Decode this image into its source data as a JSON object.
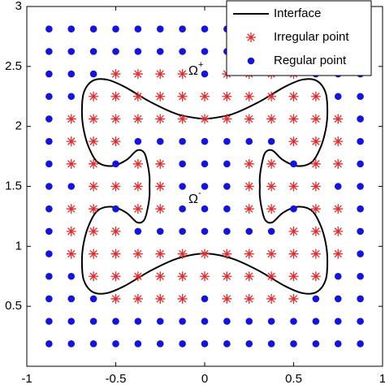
{
  "chart_data": {
    "type": "scatter",
    "xlim": [
      -1,
      1
    ],
    "ylim": [
      0,
      3
    ],
    "xticks": [
      -1,
      -0.5,
      0,
      0.5,
      1
    ],
    "yticks": [
      0.5,
      1,
      1.5,
      2,
      2.5,
      3
    ],
    "legend": "upper right",
    "annotations": [
      {
        "text": "Ω",
        "superscript": "+"
      },
      {
        "text": "Ω",
        "superscript": "-"
      }
    ],
    "series": [
      {
        "name": "Interface",
        "type": "line",
        "color": "#000000",
        "x": [
          0,
          -0.15,
          -0.3,
          -0.45,
          -0.55,
          -0.63,
          -0.68,
          -0.69,
          -0.68,
          -0.65,
          -0.6,
          -0.52,
          -0.44,
          -0.38,
          -0.34,
          -0.32,
          -0.31,
          -0.31,
          -0.31,
          -0.32,
          -0.34,
          -0.38,
          -0.44,
          -0.52,
          -0.6,
          -0.65,
          -0.68,
          -0.69,
          -0.68,
          -0.63,
          -0.55,
          -0.45,
          -0.3,
          -0.15,
          0,
          0.15,
          0.3,
          0.45,
          0.55,
          0.63,
          0.68,
          0.69,
          0.68,
          0.65,
          0.6,
          0.52,
          0.44,
          0.38,
          0.34,
          0.32,
          0.31,
          0.31,
          0.31,
          0.32,
          0.34,
          0.38,
          0.44,
          0.52,
          0.6,
          0.65,
          0.68,
          0.69,
          0.68,
          0.63,
          0.55,
          0.45,
          0.3,
          0.15,
          0
        ],
        "y": [
          2.06,
          2.1,
          2.2,
          2.33,
          2.39,
          2.38,
          2.28,
          2.12,
          1.97,
          1.82,
          1.7,
          1.67,
          1.72,
          1.8,
          1.78,
          1.68,
          1.58,
          1.5,
          1.42,
          1.32,
          1.22,
          1.2,
          1.28,
          1.33,
          1.3,
          1.18,
          1.03,
          0.88,
          0.72,
          0.62,
          0.61,
          0.67,
          0.8,
          0.9,
          0.94,
          0.9,
          0.8,
          0.67,
          0.61,
          0.62,
          0.72,
          0.88,
          1.03,
          1.18,
          1.3,
          1.33,
          1.28,
          1.2,
          1.22,
          1.32,
          1.42,
          1.5,
          1.58,
          1.68,
          1.78,
          1.8,
          1.72,
          1.67,
          1.7,
          1.82,
          1.97,
          2.12,
          2.28,
          2.38,
          2.39,
          2.33,
          2.2,
          2.1,
          2.06
        ]
      },
      {
        "name": "Irregular point",
        "type": "star",
        "color": "#e8292a",
        "x": [
          -0.5,
          -0.375,
          -0.25,
          -0.125,
          0.125,
          0.25,
          0.375,
          0.5,
          -0.625,
          -0.5,
          -0.375,
          -0.25,
          -0.125,
          0,
          0.125,
          0.25,
          0.375,
          0.5,
          0.625,
          -0.75,
          -0.625,
          -0.5,
          -0.375,
          -0.25,
          -0.125,
          0,
          0.125,
          0.25,
          0.375,
          0.5,
          0.625,
          0.75,
          -0.75,
          -0.625,
          -0.5,
          0.5,
          0.625,
          0.75,
          -0.75,
          -0.625,
          -0.375,
          -0.25,
          0.25,
          0.375,
          0.625,
          0.75,
          -0.625,
          -0.5,
          -0.375,
          -0.25,
          0.25,
          0.375,
          0.5,
          0.625,
          -0.75,
          -0.625,
          -0.375,
          -0.25,
          0.25,
          0.375,
          0.625,
          0.75,
          -0.75,
          -0.625,
          -0.5,
          0.5,
          0.625,
          0.75,
          -0.75,
          -0.625,
          -0.5,
          -0.375,
          -0.25,
          -0.125,
          0,
          0.125,
          0.25,
          0.375,
          0.5,
          0.625,
          0.75,
          -0.625,
          -0.5,
          -0.375,
          -0.25,
          -0.125,
          0,
          0.125,
          0.25,
          0.375,
          0.5,
          0.625,
          -0.5,
          -0.375,
          -0.25,
          -0.125,
          0.125,
          0.25,
          0.375,
          0.5
        ],
        "y": [
          0.5625,
          0.5625,
          0.5625,
          0.5625,
          0.5625,
          0.5625,
          0.5625,
          0.5625,
          0.75,
          0.75,
          0.75,
          0.75,
          0.75,
          0.75,
          0.75,
          0.75,
          0.75,
          0.75,
          0.75,
          0.9375,
          0.9375,
          0.9375,
          0.9375,
          0.9375,
          0.9375,
          0.9375,
          0.9375,
          0.9375,
          0.9375,
          0.9375,
          0.9375,
          0.9375,
          1.125,
          1.125,
          1.125,
          1.125,
          1.125,
          1.125,
          1.3125,
          1.3125,
          1.3125,
          1.3125,
          1.3125,
          1.3125,
          1.3125,
          1.3125,
          1.5,
          1.5,
          1.5,
          1.5,
          1.5,
          1.5,
          1.5,
          1.5,
          1.6875,
          1.6875,
          1.6875,
          1.6875,
          1.6875,
          1.6875,
          1.6875,
          1.6875,
          1.875,
          1.875,
          1.875,
          1.875,
          1.875,
          1.875,
          2.0625,
          2.0625,
          2.0625,
          2.0625,
          2.0625,
          2.0625,
          2.0625,
          2.0625,
          2.0625,
          2.0625,
          2.0625,
          2.0625,
          2.0625,
          2.25,
          2.25,
          2.25,
          2.25,
          2.25,
          2.25,
          2.25,
          2.25,
          2.25,
          2.25,
          2.25,
          2.4375,
          2.4375,
          2.4375,
          2.4375,
          2.4375,
          2.4375,
          2.4375,
          2.4375
        ]
      },
      {
        "name": "Regular point",
        "type": "dot",
        "color": "#1414e0",
        "x": [
          -0.875,
          -0.75,
          -0.625,
          -0.5,
          -0.375,
          -0.25,
          -0.125,
          0,
          0.125,
          0.25,
          0.375,
          0.5,
          0.625,
          0.75,
          0.875,
          -0.875,
          -0.75,
          -0.625,
          -0.5,
          -0.375,
          -0.25,
          -0.125,
          0,
          0.125,
          0.25,
          0.375,
          0.5,
          0.625,
          0.75,
          0.875,
          -0.875,
          -0.75,
          -0.625,
          0,
          0.625,
          0.75,
          0.875,
          -0.875,
          -0.75,
          0.75,
          0.875,
          -0.875,
          0.875,
          -0.875,
          -0.375,
          -0.25,
          -0.125,
          0,
          0.125,
          0.25,
          0.375,
          0.875,
          -0.875,
          -0.5,
          -0.125,
          0,
          0.125,
          0.5,
          0.875,
          -0.875,
          -0.75,
          -0.125,
          0,
          0.125,
          0.75,
          0.875,
          -0.875,
          -0.5,
          -0.125,
          0,
          0.125,
          0.5,
          0.875,
          -0.875,
          -0.375,
          -0.25,
          -0.125,
          0,
          0.125,
          0.25,
          0.375,
          0.875,
          -0.875,
          0.875,
          -0.875,
          -0.75,
          0.75,
          0.875,
          -0.875,
          -0.75,
          -0.625,
          0,
          0.625,
          0.75,
          0.875,
          -0.875,
          -0.75,
          -0.625,
          -0.5,
          -0.375,
          -0.25,
          -0.125,
          0,
          0.125,
          0.25,
          0.375,
          0.5,
          0.625,
          0.75,
          0.875,
          -0.875,
          -0.75,
          -0.625,
          -0.5,
          -0.375,
          -0.25,
          -0.125,
          0,
          0.125,
          0.25,
          0.375,
          0.5,
          0.625,
          0.75,
          0.875
        ],
        "y": [
          0.1875,
          0.1875,
          0.1875,
          0.1875,
          0.1875,
          0.1875,
          0.1875,
          0.1875,
          0.1875,
          0.1875,
          0.1875,
          0.1875,
          0.1875,
          0.1875,
          0.1875,
          0.375,
          0.375,
          0.375,
          0.375,
          0.375,
          0.375,
          0.375,
          0.375,
          0.375,
          0.375,
          0.375,
          0.375,
          0.375,
          0.375,
          0.375,
          0.5625,
          0.5625,
          0.5625,
          0.5625,
          0.5625,
          0.5625,
          0.5625,
          0.75,
          0.75,
          0.75,
          0.75,
          0.9375,
          0.9375,
          1.125,
          1.125,
          1.125,
          1.125,
          1.125,
          1.125,
          1.125,
          1.125,
          1.125,
          1.3125,
          1.3125,
          1.3125,
          1.3125,
          1.3125,
          1.3125,
          1.3125,
          1.5,
          1.5,
          1.5,
          1.5,
          1.5,
          1.5,
          1.5,
          1.6875,
          1.6875,
          1.6875,
          1.6875,
          1.6875,
          1.6875,
          1.6875,
          1.875,
          1.875,
          1.875,
          1.875,
          1.875,
          1.875,
          1.875,
          1.875,
          1.875,
          2.0625,
          2.0625,
          2.25,
          2.25,
          2.25,
          2.25,
          2.4375,
          2.4375,
          2.4375,
          2.4375,
          2.4375,
          2.4375,
          2.4375,
          2.625,
          2.625,
          2.625,
          2.625,
          2.625,
          2.625,
          2.625,
          2.625,
          2.625,
          2.625,
          2.625,
          2.625,
          2.625,
          2.625,
          2.625,
          2.8125,
          2.8125,
          2.8125,
          2.8125,
          2.8125,
          2.8125,
          2.8125,
          2.8125,
          2.8125,
          2.8125,
          2.8125,
          2.8125,
          2.8125,
          2.8125,
          2.8125
        ]
      }
    ]
  }
}
